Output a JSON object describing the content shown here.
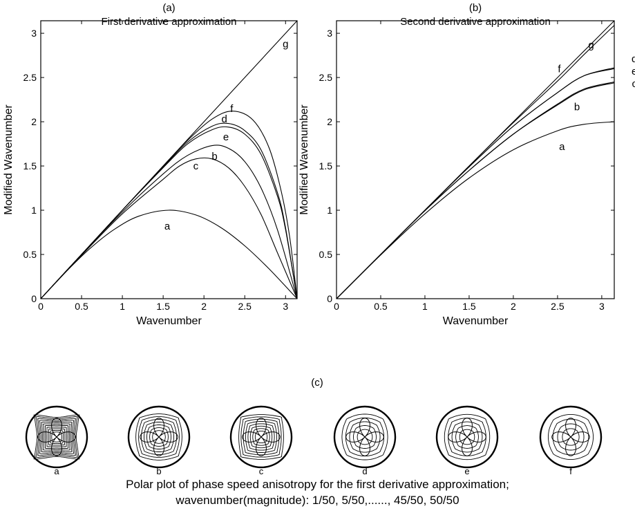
{
  "chart_data": [
    {
      "type": "line",
      "panel_label": "(a)",
      "title": "First derivative approximation",
      "xlabel": "Wavenumber",
      "ylabel": "Modified Wavenumber",
      "xlim": [
        0,
        3.1416
      ],
      "ylim": [
        0,
        3.1416
      ],
      "xticks": [
        "0",
        "0.5",
        "1",
        "1.5",
        "2",
        "2.5",
        "3"
      ],
      "yticks": [
        "0",
        "0.5",
        "1",
        "1.5",
        "2",
        "2.5",
        "3"
      ],
      "grid": false,
      "series": [
        {
          "name": "a",
          "x": [
            0,
            0.3,
            0.6,
            0.9,
            1.2,
            1.5708,
            1.9,
            2.2,
            2.5,
            2.8,
            3.1416
          ],
          "y": [
            0,
            0.296,
            0.565,
            0.783,
            0.932,
            1.0,
            0.946,
            0.808,
            0.598,
            0.335,
            0
          ]
        },
        {
          "name": "b",
          "x": [
            0,
            0.5,
            1.0,
            1.5,
            1.8,
            2.1,
            2.3,
            2.5,
            2.7,
            2.9,
            3.1416
          ],
          "y": [
            0,
            0.5,
            0.98,
            1.41,
            1.62,
            1.73,
            1.7,
            1.55,
            1.25,
            0.78,
            0
          ]
        },
        {
          "name": "c",
          "x": [
            0,
            0.5,
            1.0,
            1.5,
            1.7,
            1.9,
            2.1,
            2.3,
            2.5,
            2.7,
            2.9,
            3.1416
          ],
          "y": [
            0,
            0.49,
            0.96,
            1.35,
            1.5,
            1.58,
            1.58,
            1.48,
            1.27,
            0.95,
            0.52,
            0
          ]
        },
        {
          "name": "d",
          "x": [
            0,
            0.5,
            1.0,
            1.5,
            1.8,
            2.1,
            2.3,
            2.5,
            2.7,
            2.9,
            3.0,
            3.1416
          ],
          "y": [
            0,
            0.5,
            1.0,
            1.49,
            1.77,
            1.95,
            1.98,
            1.9,
            1.68,
            1.2,
            0.8,
            0
          ]
        },
        {
          "name": "e",
          "x": [
            0,
            0.5,
            1.0,
            1.5,
            1.8,
            2.1,
            2.3,
            2.5,
            2.7,
            2.9,
            3.0,
            3.1416
          ],
          "y": [
            0,
            0.5,
            1.0,
            1.48,
            1.75,
            1.91,
            1.94,
            1.86,
            1.63,
            1.16,
            0.78,
            0
          ]
        },
        {
          "name": "f",
          "x": [
            0,
            0.5,
            1.0,
            1.5,
            1.8,
            2.1,
            2.35,
            2.6,
            2.8,
            2.95,
            3.05,
            3.1416
          ],
          "y": [
            0,
            0.5,
            1.0,
            1.5,
            1.79,
            2.03,
            2.12,
            2.02,
            1.7,
            1.2,
            0.7,
            0
          ]
        },
        {
          "name": "g",
          "x": [
            0,
            3.1416
          ],
          "y": [
            0,
            3.1416
          ]
        }
      ],
      "curve_labels": [
        {
          "text": "a",
          "x": 1.55,
          "y": 0.82
        },
        {
          "text": "b",
          "x": 2.13,
          "y": 1.61
        },
        {
          "text": "c",
          "x": 1.9,
          "y": 1.5
        },
        {
          "text": "d",
          "x": 2.25,
          "y": 2.03
        },
        {
          "text": "e",
          "x": 2.27,
          "y": 1.83
        },
        {
          "text": "f",
          "x": 2.34,
          "y": 2.15
        },
        {
          "text": "g",
          "x": 3.0,
          "y": 2.88
        }
      ]
    },
    {
      "type": "line",
      "panel_label": "(b)",
      "title": "Second derivative approximation",
      "xlabel": "Wavenumber",
      "ylabel": "Modified Wavenumber",
      "xlim": [
        0,
        3.1416
      ],
      "ylim": [
        0,
        3.1416
      ],
      "xticks": [
        "0",
        "0.5",
        "1",
        "1.5",
        "2",
        "2.5",
        "3"
      ],
      "yticks": [
        "0",
        "0.5",
        "1",
        "1.5",
        "2",
        "2.5",
        "3"
      ],
      "grid": false,
      "series": [
        {
          "name": "a",
          "x": [
            0,
            0.5,
            1.0,
            1.5,
            2.0,
            2.5,
            2.8,
            3.1416
          ],
          "y": [
            0,
            0.495,
            0.959,
            1.364,
            1.683,
            1.898,
            1.971,
            2.0
          ]
        },
        {
          "name": "b",
          "x": [
            0,
            0.5,
            1.0,
            1.5,
            2.0,
            2.5,
            2.8,
            3.1416
          ],
          "y": [
            0,
            0.5,
            0.995,
            1.45,
            1.86,
            2.2,
            2.37,
            2.45
          ]
        },
        {
          "name": "c",
          "x": [
            0,
            0.5,
            1.0,
            1.5,
            2.0,
            2.5,
            2.8,
            3.1416
          ],
          "y": [
            0,
            0.5,
            0.995,
            1.45,
            1.86,
            2.19,
            2.36,
            2.44
          ]
        },
        {
          "name": "d",
          "x": [
            0,
            0.5,
            1.0,
            1.5,
            2.0,
            2.5,
            2.8,
            3.1416
          ],
          "y": [
            0,
            0.5,
            1.0,
            1.49,
            1.95,
            2.33,
            2.52,
            2.61
          ]
        },
        {
          "name": "e",
          "x": [
            0,
            0.5,
            1.0,
            1.5,
            2.0,
            2.5,
            2.8,
            3.1416
          ],
          "y": [
            0,
            0.5,
            1.0,
            1.49,
            1.95,
            2.33,
            2.52,
            2.6
          ]
        },
        {
          "name": "f",
          "x": [
            0,
            0.5,
            1.0,
            1.5,
            2.0,
            2.5,
            2.8,
            3.1416
          ],
          "y": [
            0,
            0.5,
            1.0,
            1.5,
            1.99,
            2.46,
            2.76,
            3.09
          ]
        },
        {
          "name": "g",
          "x": [
            0,
            0.5,
            1.0,
            1.5,
            2.0,
            2.5,
            2.8,
            3.1416
          ],
          "y": [
            0,
            0.5,
            1.0,
            1.5,
            2.0,
            2.5,
            2.8,
            3.1416
          ]
        }
      ],
      "curve_labels": [
        {
          "text": "a",
          "x": 2.55,
          "y": 1.72
        },
        {
          "text": "b",
          "x": 2.72,
          "y": 2.17
        },
        {
          "text": "c",
          "x": 3.37,
          "y": 2.43
        },
        {
          "text": "d",
          "x": 3.37,
          "y": 2.71
        },
        {
          "text": "e",
          "x": 3.37,
          "y": 2.57
        },
        {
          "text": "f",
          "x": 2.52,
          "y": 2.6
        },
        {
          "text": "g",
          "x": 2.88,
          "y": 2.87
        }
      ]
    },
    {
      "type": "polar",
      "panel_label": "(c)",
      "plots": [
        {
          "label": "a",
          "contours": 11,
          "petal": 0.55
        },
        {
          "label": "b",
          "contours": 7,
          "petal": 0.2
        },
        {
          "label": "c",
          "contours": 8,
          "petal": 0.28
        },
        {
          "label": "d",
          "contours": 5,
          "petal": 0.14
        },
        {
          "label": "e",
          "contours": 5,
          "petal": 0.16
        },
        {
          "label": "f",
          "contours": 4,
          "petal": 0.1
        }
      ],
      "caption_line1": "Polar plot of phase speed anisotropy for the first derivative approximation;",
      "caption_line2": "wavenumber(magnitude): 1/50, 5/50,......, 45/50, 50/50"
    }
  ]
}
